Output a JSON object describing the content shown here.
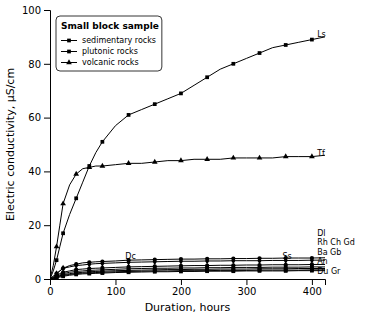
{
  "chart_data": {
    "type": "line",
    "title": "Small block sample",
    "x_label": "Duration, hours",
    "y_label": "Electric conductivity, μS/cm",
    "xlim": [
      0,
      420
    ],
    "ylim": [
      0,
      100
    ],
    "xticks": [
      0,
      100,
      200,
      300,
      400
    ],
    "yticks": [
      0,
      20,
      40,
      60,
      80,
      100
    ],
    "grid": false,
    "legend": "upper left",
    "color": "#000000",
    "x": [
      0,
      5,
      10,
      15,
      20,
      30,
      40,
      50,
      60,
      70,
      80,
      100,
      120,
      140,
      160,
      180,
      200,
      220,
      240,
      260,
      280,
      300,
      320,
      340,
      360,
      380,
      400,
      420
    ],
    "series": [
      {
        "marker": "square",
        "values": [
          0,
          3,
          7,
          12,
          17,
          24,
          30,
          36,
          42,
          47,
          51,
          57,
          61,
          63,
          65,
          67,
          69,
          72,
          75,
          78,
          80,
          82,
          84,
          86,
          87,
          88,
          89,
          90
        ]
      },
      {
        "marker": "triangle",
        "values": [
          0,
          5,
          12,
          20,
          28,
          35,
          39,
          41,
          41.5,
          42,
          42,
          42.5,
          43,
          43,
          43.5,
          44,
          44,
          44.5,
          44.5,
          44.5,
          45,
          45,
          45,
          45,
          45.5,
          45.5,
          45.5,
          46
        ]
      },
      {
        "marker": "circle",
        "values": [
          0,
          1,
          2,
          3,
          4,
          5,
          5.5,
          6,
          6.2,
          6.4,
          6.5,
          6.7,
          7,
          7.1,
          7.2,
          7.3,
          7.4,
          7.4,
          7.5,
          7.5,
          7.6,
          7.6,
          7.7,
          7.7,
          7.8,
          7.8,
          7.8,
          7.9
        ]
      },
      {
        "marker": "diamond",
        "values": [
          0,
          1,
          2,
          3,
          4,
          4.5,
          5,
          5.2,
          5.5,
          5.7,
          5.8,
          6,
          6.2,
          6.3,
          6.4,
          6.5,
          6.6,
          6.6,
          6.7,
          6.7,
          6.8,
          6.8,
          6.8,
          6.9,
          6.9,
          6.9,
          7,
          7
        ]
      },
      {
        "marker": "circle",
        "values": [
          0,
          0.5,
          1.2,
          2,
          2.5,
          3,
          3.5,
          3.7,
          3.9,
          4,
          4.1,
          4.3,
          4.5,
          4.6,
          4.7,
          4.8,
          4.9,
          5,
          5,
          5.1,
          5.1,
          5.2,
          5.2,
          5.3,
          5.3,
          5.3,
          5.4,
          5.4
        ]
      },
      {
        "marker": "square",
        "values": [
          0,
          0.4,
          1,
          1.5,
          2,
          2.5,
          2.8,
          3,
          3.2,
          3.3,
          3.4,
          3.6,
          3.8,
          3.9,
          4,
          4,
          4.1,
          4.1,
          4.2,
          4.2,
          4.3,
          4.3,
          4.3,
          4.4,
          4.4,
          4.4,
          4.5,
          4.5
        ]
      },
      {
        "marker": "square",
        "values": [
          0,
          0.3,
          0.8,
          1.2,
          1.6,
          2,
          2.3,
          2.5,
          2.7,
          2.8,
          2.9,
          3.1,
          3.2,
          3.3,
          3.4,
          3.5,
          3.5,
          3.6,
          3.6,
          3.7,
          3.7,
          3.7,
          3.8,
          3.8,
          3.8,
          3.9,
          3.9,
          3.9
        ]
      },
      {
        "marker": "square",
        "values": [
          0,
          0.2,
          0.6,
          1,
          1.3,
          1.7,
          2,
          2.2,
          2.3,
          2.4,
          2.5,
          2.7,
          2.8,
          2.9,
          3,
          3,
          3.1,
          3.1,
          3.1,
          3.2,
          3.2,
          3.2,
          3.3,
          3.3,
          3.3,
          3.3,
          3.4,
          3.4
        ]
      },
      {
        "marker": "square",
        "values": [
          0,
          0.1,
          0.4,
          0.7,
          1,
          1.4,
          1.7,
          1.9,
          2,
          2.1,
          2.2,
          2.4,
          2.5,
          2.6,
          2.7,
          2.7,
          2.8,
          2.8,
          2.9,
          2.9,
          2.9,
          3,
          3,
          3,
          3,
          3.1,
          3.1,
          3.1
        ]
      }
    ],
    "legend_entries": [
      {
        "label": "sedimentary rocks",
        "marker": "square"
      },
      {
        "label": "plutonic rocks",
        "marker": "square"
      },
      {
        "label": "volcanic rocks",
        "marker": "triangle"
      }
    ],
    "annotations": [
      {
        "text": "Ls",
        "x": 408,
        "y": 91
      },
      {
        "text": "Tf",
        "x": 408,
        "y": 46.5
      },
      {
        "text": "Dc",
        "x": 115,
        "y": 8.2
      },
      {
        "text": "Ss",
        "x": 355,
        "y": 8.5
      },
      {
        "text": "Dl",
        "x": 408,
        "y": 5.8
      },
      {
        "text": "Rh Ch Gd",
        "x": 408,
        "y": 4.7
      },
      {
        "text": "Ba Gb",
        "x": 408,
        "y": 4.0
      },
      {
        "text": "An",
        "x": 408,
        "y": 3.4
      },
      {
        "text": "Du Gr",
        "x": 408,
        "y": 2.8
      }
    ]
  }
}
